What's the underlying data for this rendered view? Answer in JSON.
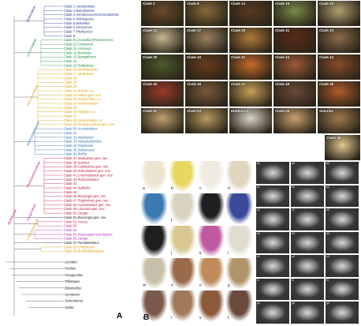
{
  "figure": {
    "panel_a_label": "A",
    "panel_b_label": "B"
  },
  "subfamilies": [
    {
      "name": "Boletoideae",
      "color": "#2b3b8f"
    },
    {
      "name": "Leccinoideae",
      "color": "#1a8f3a"
    },
    {
      "name": "Xerocomoideae",
      "color": "#d9a000"
    },
    {
      "name": "Austroboletoideae",
      "color": "#2f6fb5"
    },
    {
      "name": "Phylloboletinoideae",
      "color": "#c2186b"
    },
    {
      "name": "Zangioideae",
      "color": "#b02bb0"
    },
    {
      "name": "Chalciporoideae",
      "color": "#e09a00"
    },
    {
      "name": "Boletaceae",
      "color": "#c0153a"
    }
  ],
  "clades": [
    {
      "n": "Clade 1",
      "t": "Aureoboletus",
      "c": "#2b3b8f"
    },
    {
      "n": "Clade 2",
      "t": "Butyriboletus",
      "c": "#2b3b8f"
    },
    {
      "n": "Clade 3",
      "t": "Hemileccinum/Corneroboletus",
      "c": "#2b3b8f"
    },
    {
      "n": "Clade 4",
      "t": "Heimioporus",
      "c": "#2b3b8f"
    },
    {
      "n": "Clade 5",
      "t": "Boletellus",
      "c": "#2b3b8f"
    },
    {
      "n": "Clade 6",
      "t": "Xerocomus",
      "c": "#2b3b8f"
    },
    {
      "n": "Clade 7",
      "t": "Phylloporus",
      "c": "#2b3b8f"
    },
    {
      "n": "Clade 8",
      "t": "",
      "c": "#2b3b8f"
    },
    {
      "n": "Clade 9",
      "t": "Leccinellum/Rossbeevera",
      "c": "#1a8f3a"
    },
    {
      "n": "Clade 10",
      "t": "Octaviania",
      "c": "#1a8f3a"
    },
    {
      "n": "Clade 11",
      "t": "Leccinum",
      "c": "#1a8f3a"
    },
    {
      "n": "Clade 12",
      "t": "Borofutus",
      "c": "#1a8f3a"
    },
    {
      "n": "Clade 13",
      "t": "Spongiforma",
      "c": "#1a8f3a"
    },
    {
      "n": "Clade 14",
      "t": "",
      "c": "#1a8f3a"
    },
    {
      "n": "Clade 15",
      "t": "Retiboletus",
      "c": "#1a8f3a"
    },
    {
      "n": "Clade 16",
      "t": "Strobilomyces",
      "c": "#d9a000"
    },
    {
      "n": "Clade 17",
      "t": "Afroboletus",
      "c": "#d9a000"
    },
    {
      "n": "Clade 18",
      "t": "",
      "c": "#d9a000"
    },
    {
      "n": "Clade 19",
      "t": "",
      "c": "#d9a000"
    },
    {
      "n": "Clade 20",
      "t": "",
      "c": "#d9a000"
    },
    {
      "n": "Clade 21",
      "t": "Boletus s.s.",
      "c": "#d9a000"
    },
    {
      "n": "Clade 22",
      "t": "Imleria gen. nov.",
      "c": "#d9a000"
    },
    {
      "n": "Clade 23",
      "t": "Porphyrellus s.s.",
      "c": "#d9a000"
    },
    {
      "n": "Clade 24",
      "t": "Xanthoconium",
      "c": "#d9a000"
    },
    {
      "n": "Clade 25",
      "t": "",
      "c": "#d9a000"
    },
    {
      "n": "Clade 26",
      "t": "Tylopilus s.s.",
      "c": "#d9a000"
    },
    {
      "n": "Clade 27",
      "t": "",
      "c": "#d9a000"
    },
    {
      "n": "Clade 28",
      "t": "Xerocomellus s.s.",
      "c": "#d9a000"
    },
    {
      "n": "Clade 29",
      "t": "Parvixerocomus gen. nov.",
      "c": "#d9a000"
    },
    {
      "n": "Clade 30",
      "t": "Austroboletus",
      "c": "#2f6fb5"
    },
    {
      "n": "Clade 31",
      "t": "",
      "c": "#2f6fb5"
    },
    {
      "n": "Clade 32",
      "t": "Mucilopilus",
      "c": "#2f6fb5"
    },
    {
      "n": "Clade 33",
      "t": "Veloporphyrellus",
      "c": "#2f6fb5"
    },
    {
      "n": "Clade 34",
      "t": "Fistulinella",
      "c": "#2f6fb5"
    },
    {
      "n": "Clade 35",
      "t": "Solioccasus",
      "c": "#2f6fb5"
    },
    {
      "n": "Clade 36",
      "t": "Bothia",
      "c": "#2f6fb5"
    },
    {
      "n": "Clade 37",
      "t": "Neoboletus gen. nov.",
      "c": "#c0153a"
    },
    {
      "n": "Clade 38",
      "t": "Sutorius",
      "c": "#c0153a"
    },
    {
      "n": "Clade 39",
      "t": "Caloboletus gen. nov.",
      "c": "#c0153a"
    },
    {
      "n": "Clade 40",
      "t": "Rubroboletus gen. nov.",
      "c": "#c0153a"
    },
    {
      "n": "Clade 41",
      "t": "Crocinoboletus gen. nov.",
      "c": "#c0153a"
    },
    {
      "n": "Clade 42",
      "t": "Pulveroboletus",
      "c": "#c0153a"
    },
    {
      "n": "Clade 43",
      "t": "",
      "c": "#c0153a"
    },
    {
      "n": "Clade 44",
      "t": "Suillellus",
      "c": "#c0153a"
    },
    {
      "n": "Clade 45",
      "t": "",
      "c": "#c0153a"
    },
    {
      "n": "Clade 46",
      "t": "Baorangia gen. nov.",
      "c": "#c0153a"
    },
    {
      "n": "Clade 47",
      "t": "Rugiboletus gen. nov.",
      "c": "#c0153a"
    },
    {
      "n": "Clade 48",
      "t": "Cyanoboletus gen. nov.",
      "c": "#c0153a"
    },
    {
      "n": "Clade 49",
      "t": "Lanmaoa gen. nov.",
      "c": "#c0153a"
    },
    {
      "n": "Clade 50",
      "t": "Zangia",
      "c": "#c0153a"
    },
    {
      "n": "Clade 51",
      "t": "Baorangia gen. nov.",
      "c": "#222222"
    },
    {
      "n": "Clade 52",
      "t": "Harrya",
      "c": "#c2186b"
    },
    {
      "n": "Clade 53",
      "t": "",
      "c": "#c2186b"
    },
    {
      "n": "Clade 54",
      "t": "",
      "c": "#b02bb0"
    },
    {
      "n": "Clade 55",
      "t": "Royoungia/Australopilus",
      "c": "#b02bb0"
    },
    {
      "n": "Clade 56",
      "t": "Zangia",
      "c": "#b02bb0"
    },
    {
      "n": "Clade 57",
      "t": "Pseudoboletus",
      "c": "#222222"
    },
    {
      "n": "Clade 58",
      "t": "Chalciporus",
      "c": "#e09a00"
    },
    {
      "n": "Clade 59",
      "t": "Buchwaldoboletus",
      "c": "#e09a00"
    }
  ],
  "outgroups": [
    "Gyrodon",
    "Paxillus",
    "Paragyrodon",
    "Phlebopus",
    "Boletinellus",
    "Gyroporus",
    "Scleroderma",
    "Suillus"
  ],
  "photos": [
    {
      "label": "Clade 2",
      "color": "#6b4a2a"
    },
    {
      "label": "Clade 8",
      "color": "#8a6a3a"
    },
    {
      "label": "Clade 14",
      "color": "#5a3a22"
    },
    {
      "label": "Clade 19",
      "color": "#7a8a4a"
    },
    {
      "label": "Clade 20",
      "color": "#b0a070"
    },
    {
      "label": "Clade 21",
      "color": "#c8b890"
    },
    {
      "label": "Clade 27",
      "color": "#9a8060"
    },
    {
      "label": "Clade 29",
      "color": "#b07a3a"
    },
    {
      "label": "Clade 31",
      "color": "#5a2a1a"
    },
    {
      "label": "Clade 33",
      "color": "#8a6a4a"
    },
    {
      "label": "Clade 39",
      "color": "#4a5a2a"
    },
    {
      "label": "Clade 40",
      "color": "#6a3a1a"
    },
    {
      "label": "Clade 41",
      "color": "#c86a2a"
    },
    {
      "label": "Clade 44",
      "color": "#a05a3a"
    },
    {
      "label": "Clade 43",
      "color": "#8a4a2a"
    },
    {
      "label": "Clade 45",
      "color": "#9a3a2a"
    },
    {
      "label": "Clade 46",
      "color": "#7a5a3a"
    },
    {
      "label": "Clade 47",
      "color": "#c8a05a"
    },
    {
      "label": "Clade 48",
      "color": "#6a4a3a"
    },
    {
      "label": "Clade 49",
      "color": "#b05a2a"
    },
    {
      "label": "Clade 51",
      "color": "#c0a070"
    },
    {
      "label": "Clade 53",
      "color": "#b89a60"
    },
    {
      "label": "Ruttisa s.s.",
      "color": "#dad6c8"
    },
    {
      "label": "Clade 25",
      "color": "#c8a070"
    },
    {
      "label": "Sutorius",
      "color": "#a07a50"
    },
    {
      "label": "Clade 46",
      "color": "#e0c890"
    }
  ],
  "sections": [
    {
      "label": "a",
      "color": "#ede4d0"
    },
    {
      "label": "b",
      "color": "#e8d860"
    },
    {
      "label": "c",
      "color": "#f0ebe0"
    },
    {
      "label": "d",
      "color": "#e0d6c0"
    },
    {
      "label": "e",
      "color": "#3a7ab0"
    },
    {
      "label": "f",
      "color": "#d8d4c0"
    },
    {
      "label": "g",
      "color": "#1f1f1f"
    },
    {
      "label": "h",
      "color": "#3a4a9a"
    },
    {
      "label": "i",
      "color": "#1f1f1f"
    },
    {
      "label": "j",
      "color": "#d8c890"
    },
    {
      "label": "k",
      "color": "#c05aa0"
    },
    {
      "label": "l",
      "color": "#e0dcd0"
    },
    {
      "label": "m",
      "color": "#c8bfa8"
    },
    {
      "label": "n",
      "color": "#9a6a4a"
    },
    {
      "label": "o",
      "color": "#c08a5a"
    },
    {
      "label": "p",
      "color": "#b0956a"
    },
    {
      "label": "q",
      "color": "#7a5a4a"
    },
    {
      "label": "r",
      "color": "#a07a5a"
    },
    {
      "label": "s",
      "color": "#8a5a3a"
    },
    {
      "label": "t",
      "color": "#6a4a3a"
    }
  ],
  "sem": [
    {
      "label": "a1"
    },
    {
      "label": "a2"
    },
    {
      "label": "a3"
    },
    {
      "label": "b1"
    },
    {
      "label": "b2"
    },
    {
      "label": "b3"
    },
    {
      "label": "c1"
    },
    {
      "label": "c2"
    },
    {
      "label": "c3"
    },
    {
      "label": "d1"
    },
    {
      "label": "d2"
    },
    {
      "label": "d3"
    },
    {
      "label": "e1"
    },
    {
      "label": "e2"
    },
    {
      "label": "e3"
    },
    {
      "label": "f1"
    },
    {
      "label": "f2"
    },
    {
      "label": "f3"
    },
    {
      "label": "g1"
    },
    {
      "label": "g2"
    },
    {
      "label": "g3"
    }
  ]
}
